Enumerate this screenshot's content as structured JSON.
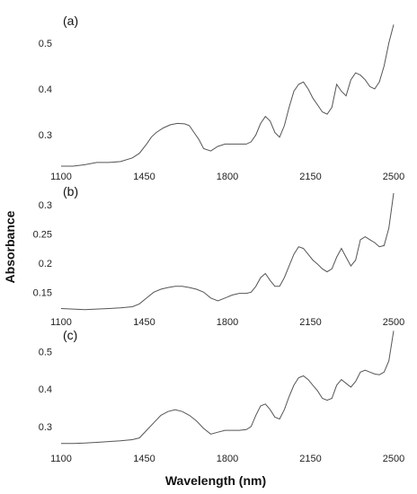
{
  "figure": {
    "ylabel": "Absorbance",
    "xlabel": "Wavelength (nm)"
  },
  "chart_data": [
    {
      "type": "line",
      "panel": "(a)",
      "xlim": [
        1100,
        2500
      ],
      "ylim": [
        0.23,
        0.57
      ],
      "xticks": [
        1100,
        1450,
        1800,
        2150,
        2500
      ],
      "yticks": [
        0.3,
        0.4,
        0.5
      ],
      "yticklabels": [
        "0.3",
        "0.4",
        "0.5"
      ],
      "grid": false,
      "series": [
        {
          "x": [
            1100,
            1150,
            1200,
            1250,
            1300,
            1350,
            1400,
            1430,
            1460,
            1480,
            1500,
            1530,
            1560,
            1590,
            1620,
            1640,
            1660,
            1680,
            1700,
            1730,
            1760,
            1790,
            1820,
            1850,
            1880,
            1900,
            1920,
            1940,
            1960,
            1980,
            2000,
            2020,
            2040,
            2060,
            2080,
            2100,
            2120,
            2140,
            2160,
            2180,
            2200,
            2220,
            2240,
            2260,
            2280,
            2300,
            2320,
            2340,
            2360,
            2380,
            2400,
            2420,
            2440,
            2460,
            2480,
            2500
          ],
          "y": [
            0.232,
            0.232,
            0.235,
            0.24,
            0.24,
            0.242,
            0.25,
            0.26,
            0.28,
            0.295,
            0.305,
            0.315,
            0.322,
            0.325,
            0.324,
            0.32,
            0.305,
            0.29,
            0.27,
            0.265,
            0.275,
            0.28,
            0.28,
            0.28,
            0.28,
            0.285,
            0.3,
            0.325,
            0.34,
            0.33,
            0.305,
            0.295,
            0.32,
            0.36,
            0.395,
            0.41,
            0.415,
            0.4,
            0.38,
            0.365,
            0.35,
            0.345,
            0.36,
            0.41,
            0.395,
            0.385,
            0.42,
            0.435,
            0.43,
            0.42,
            0.405,
            0.4,
            0.415,
            0.45,
            0.5,
            0.54
          ]
        }
      ]
    },
    {
      "type": "line",
      "panel": "(b)",
      "xlim": [
        1100,
        2500
      ],
      "ylim": [
        0.115,
        0.34
      ],
      "xticks": [
        1100,
        1450,
        1800,
        2150,
        2500
      ],
      "yticks": [
        0.15,
        0.2,
        0.25,
        0.3
      ],
      "yticklabels": [
        "0.15",
        "0.2",
        "0.25",
        "0.3"
      ],
      "grid": false,
      "series": [
        {
          "x": [
            1100,
            1150,
            1200,
            1250,
            1300,
            1350,
            1400,
            1430,
            1460,
            1490,
            1520,
            1550,
            1580,
            1610,
            1640,
            1670,
            1700,
            1730,
            1760,
            1790,
            1820,
            1850,
            1880,
            1900,
            1920,
            1940,
            1960,
            1980,
            2000,
            2020,
            2040,
            2060,
            2080,
            2100,
            2120,
            2140,
            2160,
            2180,
            2200,
            2220,
            2240,
            2260,
            2280,
            2300,
            2320,
            2340,
            2360,
            2380,
            2400,
            2420,
            2440,
            2460,
            2480,
            2500
          ],
          "y": [
            0.122,
            0.121,
            0.12,
            0.121,
            0.122,
            0.123,
            0.125,
            0.13,
            0.14,
            0.15,
            0.155,
            0.158,
            0.16,
            0.16,
            0.158,
            0.155,
            0.15,
            0.14,
            0.135,
            0.14,
            0.145,
            0.148,
            0.148,
            0.15,
            0.16,
            0.175,
            0.182,
            0.17,
            0.16,
            0.16,
            0.175,
            0.195,
            0.215,
            0.228,
            0.225,
            0.215,
            0.205,
            0.198,
            0.19,
            0.185,
            0.19,
            0.21,
            0.225,
            0.21,
            0.195,
            0.205,
            0.24,
            0.245,
            0.24,
            0.235,
            0.228,
            0.23,
            0.26,
            0.32
          ]
        }
      ]
    },
    {
      "type": "line",
      "panel": "(c)",
      "xlim": [
        1100,
        2500
      ],
      "ylim": [
        0.24,
        0.57
      ],
      "xticks": [
        1100,
        1450,
        1800,
        2150,
        2500
      ],
      "yticks": [
        0.3,
        0.4,
        0.5
      ],
      "yticklabels": [
        "0.3",
        "0.4",
        "0.5"
      ],
      "grid": false,
      "series": [
        {
          "x": [
            1100,
            1150,
            1200,
            1250,
            1300,
            1350,
            1400,
            1430,
            1460,
            1490,
            1520,
            1550,
            1580,
            1610,
            1640,
            1670,
            1700,
            1730,
            1760,
            1790,
            1820,
            1850,
            1880,
            1900,
            1920,
            1940,
            1960,
            1980,
            2000,
            2020,
            2040,
            2060,
            2080,
            2100,
            2120,
            2140,
            2160,
            2180,
            2200,
            2220,
            2240,
            2260,
            2280,
            2300,
            2320,
            2340,
            2360,
            2380,
            2400,
            2420,
            2440,
            2460,
            2480,
            2500
          ],
          "y": [
            0.255,
            0.255,
            0.256,
            0.258,
            0.26,
            0.262,
            0.265,
            0.27,
            0.29,
            0.31,
            0.33,
            0.34,
            0.345,
            0.34,
            0.33,
            0.315,
            0.295,
            0.28,
            0.285,
            0.29,
            0.29,
            0.29,
            0.292,
            0.3,
            0.33,
            0.355,
            0.36,
            0.345,
            0.325,
            0.32,
            0.345,
            0.38,
            0.41,
            0.43,
            0.435,
            0.425,
            0.41,
            0.395,
            0.375,
            0.37,
            0.375,
            0.41,
            0.425,
            0.415,
            0.405,
            0.42,
            0.445,
            0.45,
            0.445,
            0.44,
            0.438,
            0.445,
            0.475,
            0.555
          ]
        }
      ]
    }
  ]
}
